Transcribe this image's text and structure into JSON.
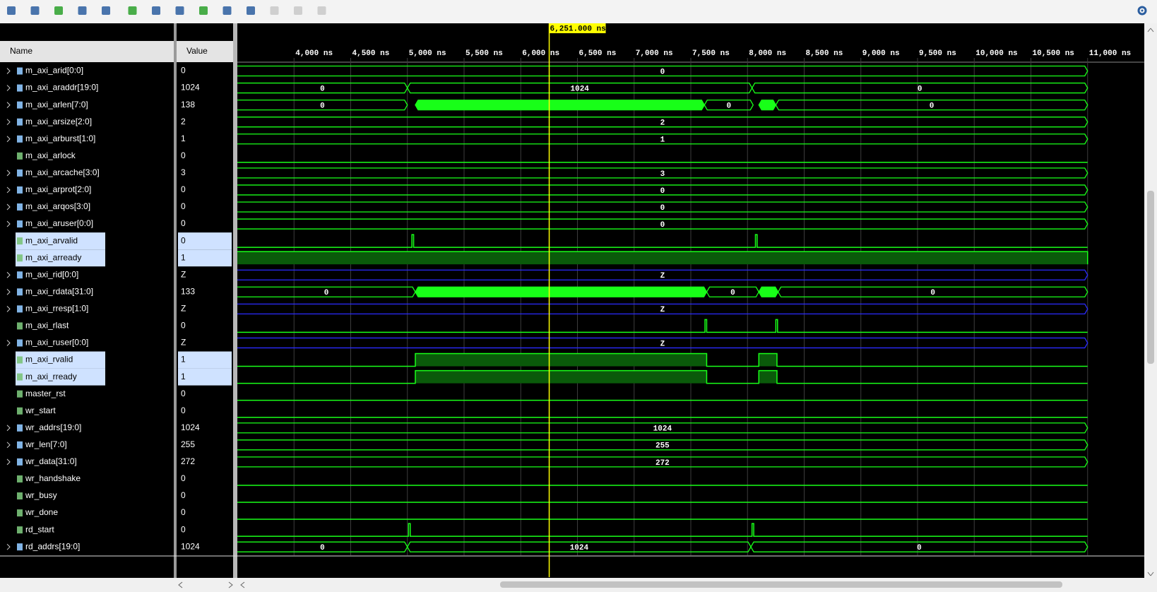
{
  "toolbar_count": 14,
  "headers": {
    "name": "Name",
    "value": "Value"
  },
  "time_axis": {
    "xlim": [
      3500,
      11500
    ],
    "sim_end": 11000,
    "ticks": [
      {
        "value": 4000,
        "label": "4,000 ns"
      },
      {
        "value": 4500,
        "label": "4,500 ns"
      },
      {
        "value": 5000,
        "label": "5,000 ns"
      },
      {
        "value": 5500,
        "label": "5,500 ns"
      },
      {
        "value": 6000,
        "label": "6,000 ns"
      },
      {
        "value": 6500,
        "label": "6,500 ns"
      },
      {
        "value": 7000,
        "label": "7,000 ns"
      },
      {
        "value": 7500,
        "label": "7,500 ns"
      },
      {
        "value": 8000,
        "label": "8,000 ns"
      },
      {
        "value": 8500,
        "label": "8,500 ns"
      },
      {
        "value": 9000,
        "label": "9,000 ns"
      },
      {
        "value": 9500,
        "label": "9,500 ns"
      },
      {
        "value": 10000,
        "label": "10,000 ns"
      },
      {
        "value": 10500,
        "label": "10,500 ns"
      },
      {
        "value": 11000,
        "label": "11,000 ns"
      }
    ],
    "cursor": {
      "value": 6251,
      "label": "6,251.000 ns"
    }
  },
  "signals": [
    {
      "name": "m_axi_arid[0:0]",
      "value": "0",
      "kind": "bus",
      "wave": [
        {
          "start": 0,
          "end": 11000,
          "label": "0"
        }
      ]
    },
    {
      "name": "m_axi_araddr[19:0]",
      "value": "1024",
      "kind": "bus",
      "wave": [
        {
          "start": 0,
          "end": 5000,
          "label": "0"
        },
        {
          "start": 5000,
          "end": 8040,
          "label": "1024"
        },
        {
          "start": 8040,
          "end": 11000,
          "label": "0"
        }
      ]
    },
    {
      "name": "m_axi_arlen[7:0]",
      "value": "138",
      "kind": "bus",
      "wave": [
        {
          "start": 0,
          "end": 5000,
          "label": "0"
        },
        {
          "start": 5070,
          "end": 7620,
          "label": null
        },
        {
          "start": 7620,
          "end": 8050,
          "label": "0"
        },
        {
          "start": 8100,
          "end": 8250,
          "label": null
        },
        {
          "start": 8250,
          "end": 11000,
          "label": "0"
        }
      ]
    },
    {
      "name": "m_axi_arsize[2:0]",
      "value": "2",
      "kind": "bus",
      "wave": [
        {
          "start": 0,
          "end": 11000,
          "label": "2"
        }
      ]
    },
    {
      "name": "m_axi_arburst[1:0]",
      "value": "1",
      "kind": "bus",
      "wave": [
        {
          "start": 0,
          "end": 11000,
          "label": "1"
        }
      ]
    },
    {
      "name": "m_axi_arlock",
      "value": "0",
      "kind": "bit",
      "high": []
    },
    {
      "name": "m_axi_arcache[3:0]",
      "value": "3",
      "kind": "bus",
      "wave": [
        {
          "start": 0,
          "end": 11000,
          "label": "3"
        }
      ]
    },
    {
      "name": "m_axi_arprot[2:0]",
      "value": "0",
      "kind": "bus",
      "wave": [
        {
          "start": 0,
          "end": 11000,
          "label": "0"
        }
      ]
    },
    {
      "name": "m_axi_arqos[3:0]",
      "value": "0",
      "kind": "bus",
      "wave": [
        {
          "start": 0,
          "end": 11000,
          "label": "0"
        }
      ]
    },
    {
      "name": "m_axi_aruser[0:0]",
      "value": "0",
      "kind": "bus",
      "wave": [
        {
          "start": 0,
          "end": 11000,
          "label": "0"
        }
      ]
    },
    {
      "name": "m_axi_arvalid",
      "value": "0",
      "kind": "bit",
      "selected": true,
      "high": [
        [
          5040,
          5055
        ],
        [
          8070,
          8085
        ]
      ]
    },
    {
      "name": "m_axi_arready",
      "value": "1",
      "kind": "bit",
      "selected": true,
      "high": [
        [
          0,
          11000
        ]
      ]
    },
    {
      "name": "m_axi_rid[0:0]",
      "value": "Z",
      "kind": "z",
      "wave": [
        {
          "start": 0,
          "end": 11000,
          "label": "Z"
        }
      ]
    },
    {
      "name": "m_axi_rdata[31:0]",
      "value": "133",
      "kind": "bus",
      "wave": [
        {
          "start": 0,
          "end": 5070,
          "label": "0"
        },
        {
          "start": 5070,
          "end": 7640,
          "label": null
        },
        {
          "start": 7640,
          "end": 8100,
          "label": "0"
        },
        {
          "start": 8100,
          "end": 8270,
          "label": null
        },
        {
          "start": 8270,
          "end": 11000,
          "label": "0"
        }
      ]
    },
    {
      "name": "m_axi_rresp[1:0]",
      "value": "Z",
      "kind": "z",
      "wave": [
        {
          "start": 0,
          "end": 11000,
          "label": "Z"
        }
      ]
    },
    {
      "name": "m_axi_rlast",
      "value": "0",
      "kind": "bit",
      "high": [
        [
          7625,
          7640
        ],
        [
          8250,
          8265
        ]
      ]
    },
    {
      "name": "m_axi_ruser[0:0]",
      "value": "Z",
      "kind": "z",
      "wave": [
        {
          "start": 0,
          "end": 11000,
          "label": "Z"
        }
      ]
    },
    {
      "name": "m_axi_rvalid",
      "value": "1",
      "kind": "bit",
      "selected": true,
      "high": [
        [
          5070,
          7640
        ],
        [
          8100,
          8260
        ]
      ]
    },
    {
      "name": "m_axi_rready",
      "value": "1",
      "kind": "bit",
      "selected": true,
      "high": [
        [
          5070,
          7640
        ],
        [
          8100,
          8260
        ]
      ]
    },
    {
      "name": "master_rst",
      "value": "0",
      "kind": "bit",
      "high": []
    },
    {
      "name": "wr_start",
      "value": "0",
      "kind": "bit",
      "high": []
    },
    {
      "name": "wr_addrs[19:0]",
      "value": "1024",
      "kind": "bus",
      "wave": [
        {
          "start": 0,
          "end": 11000,
          "label": "1024"
        }
      ]
    },
    {
      "name": "wr_len[7:0]",
      "value": "255",
      "kind": "bus",
      "wave": [
        {
          "start": 0,
          "end": 11000,
          "label": "255"
        }
      ]
    },
    {
      "name": "wr_data[31:0]",
      "value": "272",
      "kind": "bus",
      "wave": [
        {
          "start": 0,
          "end": 11000,
          "label": "272"
        }
      ]
    },
    {
      "name": "wr_handshake",
      "value": "0",
      "kind": "bit",
      "high": []
    },
    {
      "name": "wr_busy",
      "value": "0",
      "kind": "bit",
      "high": []
    },
    {
      "name": "wr_done",
      "value": "0",
      "kind": "bit",
      "high": []
    },
    {
      "name": "rd_start",
      "value": "0",
      "kind": "bit",
      "high": [
        [
          5010,
          5025
        ],
        [
          8040,
          8055
        ]
      ]
    },
    {
      "name": "rd_addrs[19:0]",
      "value": "1024",
      "kind": "bus",
      "wave": [
        {
          "start": 0,
          "end": 5000,
          "label": "0"
        },
        {
          "start": 5000,
          "end": 8030,
          "label": "1024"
        },
        {
          "start": 8030,
          "end": 11000,
          "label": "0"
        }
      ]
    }
  ]
}
